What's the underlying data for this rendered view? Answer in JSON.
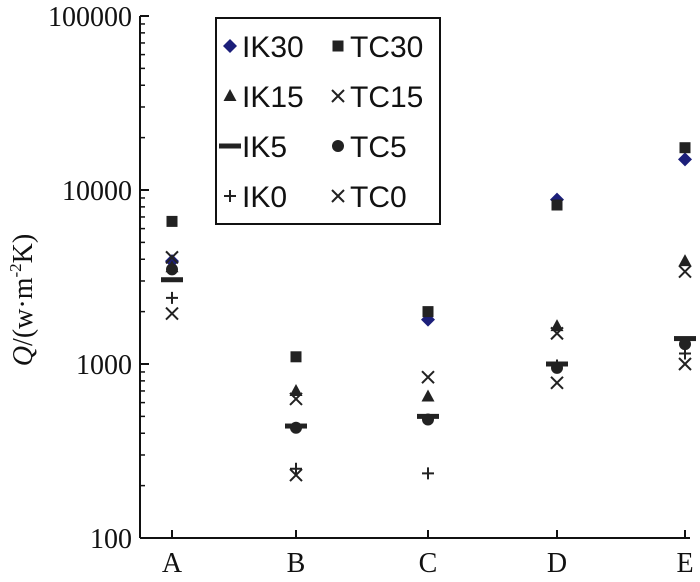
{
  "chart_data": {
    "type": "scatter",
    "title": "",
    "xlabel": "",
    "ylabel_main": "Q",
    "ylabel_rest": "/(w·m",
    "ylabel_exp": "-2",
    "ylabel_end": "K)",
    "yscale": "log",
    "ylim": [
      100,
      100000
    ],
    "yticks": [
      100,
      1000,
      10000,
      100000
    ],
    "ytick_labels": [
      "100",
      "1000",
      "10000",
      "100000"
    ],
    "categories": [
      "A",
      "B",
      "C",
      "D",
      "E"
    ],
    "legend_position": "top-left",
    "legend_columns": 2,
    "series": [
      {
        "name": "IK30",
        "marker": "diamond",
        "color": "#1c1f7a",
        "values": [
          3900,
          null,
          1800,
          8800,
          15000
        ]
      },
      {
        "name": "TC30",
        "marker": "square",
        "color": "#222222",
        "values": [
          6600,
          1100,
          2000,
          8200,
          17500
        ]
      },
      {
        "name": "IK15",
        "marker": "triangle",
        "color": "#222222",
        "values": [
          3600,
          700,
          650,
          1650,
          3900
        ]
      },
      {
        "name": "TC15",
        "marker": "x",
        "color": "#222222",
        "values": [
          4100,
          630,
          840,
          1500,
          3400
        ]
      },
      {
        "name": "IK5",
        "marker": "dash",
        "color": "#222222",
        "values": [
          3050,
          440,
          500,
          1000,
          1400
        ]
      },
      {
        "name": "TC5",
        "marker": "circle",
        "color": "#222222",
        "values": [
          3500,
          430,
          480,
          950,
          1300
        ]
      },
      {
        "name": "IK0",
        "marker": "plus",
        "color": "#222222",
        "values": [
          2400,
          250,
          235,
          980,
          1150
        ]
      },
      {
        "name": "TC0",
        "marker": "x",
        "color": "#222222",
        "values": [
          1950,
          230,
          null,
          780,
          1000
        ]
      }
    ]
  }
}
